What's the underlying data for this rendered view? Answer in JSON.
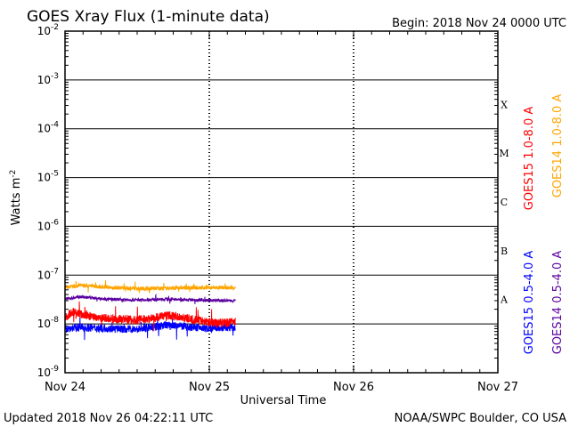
{
  "chart_data": {
    "type": "line",
    "title": "GOES Xray Flux (1-minute data)",
    "begin_label": "Begin:  2018 Nov 24 0000 UTC",
    "xlabel": "Universal Time",
    "ylabel": "Watts m",
    "ylabel_superscript": "-2",
    "y_scale": "log",
    "ylim": [
      1e-09,
      0.01
    ],
    "y_ticks": [
      {
        "base": "10",
        "exp": "-9"
      },
      {
        "base": "10",
        "exp": "-8"
      },
      {
        "base": "10",
        "exp": "-7"
      },
      {
        "base": "10",
        "exp": "-6"
      },
      {
        "base": "10",
        "exp": "-5"
      },
      {
        "base": "10",
        "exp": "-4"
      },
      {
        "base": "10",
        "exp": "-3"
      },
      {
        "base": "10",
        "exp": "-2"
      }
    ],
    "x_ticks": [
      "Nov 24",
      "Nov 25",
      "Nov 26",
      "Nov 27"
    ],
    "xlim_days": [
      0,
      3
    ],
    "data_end_day": 1.18,
    "flare_classes": [
      {
        "label": "A",
        "level": 1e-08
      },
      {
        "label": "B",
        "level": 1e-07
      },
      {
        "label": "C",
        "level": 1e-06
      },
      {
        "label": "M",
        "level": 1e-05
      },
      {
        "label": "X",
        "level": 0.0001
      }
    ],
    "series": [
      {
        "name": "GOES15 1.0-8.0 A",
        "color": "#ff0000",
        "points": [
          [
            0,
            1.3e-08
          ],
          [
            0.05,
            1.8e-08
          ],
          [
            0.1,
            1.6e-08
          ],
          [
            0.2,
            1.4e-08
          ],
          [
            0.3,
            1.3e-08
          ],
          [
            0.4,
            1.25e-08
          ],
          [
            0.5,
            1.2e-08
          ],
          [
            0.6,
            1.3e-08
          ],
          [
            0.7,
            1.5e-08
          ],
          [
            0.8,
            1.4e-08
          ],
          [
            0.9,
            1.2e-08
          ],
          [
            1.0,
            1.1e-08
          ],
          [
            1.1,
            1.05e-08
          ],
          [
            1.18,
            1.1e-08
          ]
        ]
      },
      {
        "name": "GOES14 1.0-8.0 A",
        "color": "#ffa500",
        "points": [
          [
            0,
            5.5e-08
          ],
          [
            0.1,
            6.2e-08
          ],
          [
            0.3,
            5.6e-08
          ],
          [
            0.5,
            5.3e-08
          ],
          [
            0.7,
            5.4e-08
          ],
          [
            0.9,
            5.5e-08
          ],
          [
            1.1,
            5.5e-08
          ],
          [
            1.18,
            5.5e-08
          ]
        ]
      },
      {
        "name": "GOES15 0.5-4.0 A",
        "color": "#0000ff",
        "points": [
          [
            0,
            8e-09
          ],
          [
            0.1,
            8.5e-09
          ],
          [
            0.3,
            8e-09
          ],
          [
            0.5,
            7.8e-09
          ],
          [
            0.6,
            8.5e-09
          ],
          [
            0.7,
            9.5e-09
          ],
          [
            0.8,
            9e-09
          ],
          [
            0.9,
            8.5e-09
          ],
          [
            1.0,
            8e-09
          ],
          [
            1.18,
            8.5e-09
          ]
        ]
      },
      {
        "name": "GOES14 0.5-4.0 A",
        "color": "#5a00a0",
        "points": [
          [
            0,
            3.2e-08
          ],
          [
            0.1,
            3.6e-08
          ],
          [
            0.3,
            3.2e-08
          ],
          [
            0.5,
            3.1e-08
          ],
          [
            0.7,
            3.2e-08
          ],
          [
            0.9,
            3.1e-08
          ],
          [
            1.1,
            3e-08
          ],
          [
            1.18,
            3e-08
          ]
        ]
      }
    ]
  },
  "footer": {
    "updated": "Updated 2018 Nov 26 04:22:11 UTC",
    "credit": "NOAA/SWPC Boulder, CO USA"
  }
}
